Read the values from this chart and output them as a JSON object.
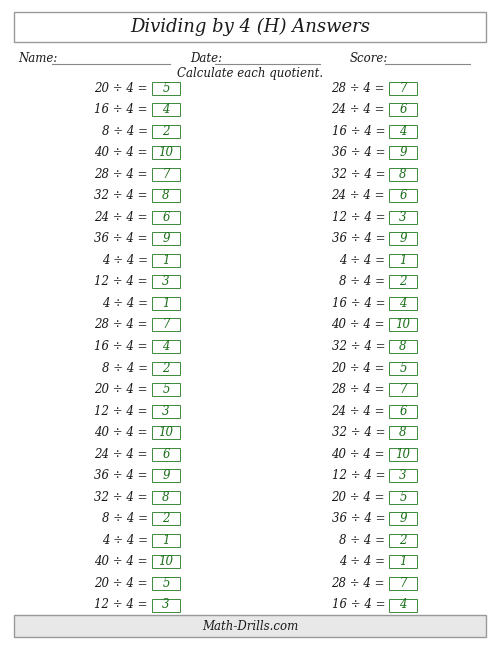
{
  "title": "Dividing by 4 (H) Answers",
  "subtitle": "Calculate each quotient.",
  "footer": "Math-Drills.com",
  "name_label": "Name:",
  "date_label": "Date:",
  "score_label": "Score:",
  "left_col": [
    {
      "q": "20 ÷ 4 =",
      "a": "5"
    },
    {
      "q": "16 ÷ 4 =",
      "a": "4"
    },
    {
      "q": "8 ÷ 4 =",
      "a": "2"
    },
    {
      "q": "40 ÷ 4 =",
      "a": "10"
    },
    {
      "q": "28 ÷ 4 =",
      "a": "7"
    },
    {
      "q": "32 ÷ 4 =",
      "a": "8"
    },
    {
      "q": "24 ÷ 4 =",
      "a": "6"
    },
    {
      "q": "36 ÷ 4 =",
      "a": "9"
    },
    {
      "q": "4 ÷ 4 =",
      "a": "1"
    },
    {
      "q": "12 ÷ 4 =",
      "a": "3"
    },
    {
      "q": "4 ÷ 4 =",
      "a": "1"
    },
    {
      "q": "28 ÷ 4 =",
      "a": "7"
    },
    {
      "q": "16 ÷ 4 =",
      "a": "4"
    },
    {
      "q": "8 ÷ 4 =",
      "a": "2"
    },
    {
      "q": "20 ÷ 4 =",
      "a": "5"
    },
    {
      "q": "12 ÷ 4 =",
      "a": "3"
    },
    {
      "q": "40 ÷ 4 =",
      "a": "10"
    },
    {
      "q": "24 ÷ 4 =",
      "a": "6"
    },
    {
      "q": "36 ÷ 4 =",
      "a": "9"
    },
    {
      "q": "32 ÷ 4 =",
      "a": "8"
    },
    {
      "q": "8 ÷ 4 =",
      "a": "2"
    },
    {
      "q": "4 ÷ 4 =",
      "a": "1"
    },
    {
      "q": "40 ÷ 4 =",
      "a": "10"
    },
    {
      "q": "20 ÷ 4 =",
      "a": "5"
    },
    {
      "q": "12 ÷ 4 =",
      "a": "3"
    }
  ],
  "right_col": [
    {
      "q": "28 ÷ 4 =",
      "a": "7"
    },
    {
      "q": "24 ÷ 4 =",
      "a": "6"
    },
    {
      "q": "16 ÷ 4 =",
      "a": "4"
    },
    {
      "q": "36 ÷ 4 =",
      "a": "9"
    },
    {
      "q": "32 ÷ 4 =",
      "a": "8"
    },
    {
      "q": "24 ÷ 4 =",
      "a": "6"
    },
    {
      "q": "12 ÷ 4 =",
      "a": "3"
    },
    {
      "q": "36 ÷ 4 =",
      "a": "9"
    },
    {
      "q": "4 ÷ 4 =",
      "a": "1"
    },
    {
      "q": "8 ÷ 4 =",
      "a": "2"
    },
    {
      "q": "16 ÷ 4 =",
      "a": "4"
    },
    {
      "q": "40 ÷ 4 =",
      "a": "10"
    },
    {
      "q": "32 ÷ 4 =",
      "a": "8"
    },
    {
      "q": "20 ÷ 4 =",
      "a": "5"
    },
    {
      "q": "28 ÷ 4 =",
      "a": "7"
    },
    {
      "q": "24 ÷ 4 =",
      "a": "6"
    },
    {
      "q": "32 ÷ 4 =",
      "a": "8"
    },
    {
      "q": "40 ÷ 4 =",
      "a": "10"
    },
    {
      "q": "12 ÷ 4 =",
      "a": "3"
    },
    {
      "q": "20 ÷ 4 =",
      "a": "5"
    },
    {
      "q": "36 ÷ 4 =",
      "a": "9"
    },
    {
      "q": "8 ÷ 4 =",
      "a": "2"
    },
    {
      "q": "4 ÷ 4 =",
      "a": "1"
    },
    {
      "q": "28 ÷ 4 =",
      "a": "7"
    },
    {
      "q": "16 ÷ 4 =",
      "a": "4"
    }
  ],
  "bg_color": "#ffffff",
  "text_color": "#1a1a1a",
  "answer_color": "#1a6e1a",
  "box_edge_color": "#3a8a3a",
  "border_color": "#999999",
  "footer_bg": "#e8e8e8",
  "title_fontsize": 13,
  "label_fontsize": 8.5,
  "question_fontsize": 8.5,
  "answer_fontsize": 8.5,
  "footer_fontsize": 8.5
}
